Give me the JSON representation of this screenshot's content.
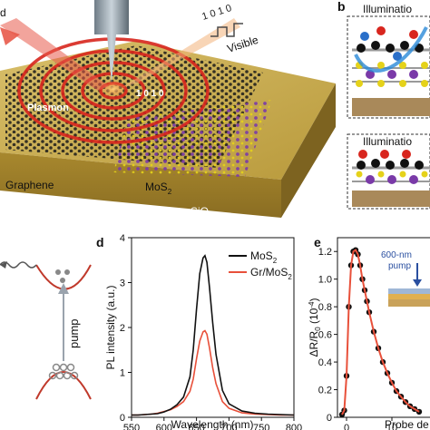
{
  "panels": {
    "a": {
      "labels": {
        "plasmon": "Plasmon",
        "graphene": "Graphene",
        "mos2": "MoS",
        "mos2_sub": "2",
        "sio2": "SiO",
        "sio2_sub": "2",
        "visible": "Visible",
        "left_clip": "d",
        "code_top": "1 0 1 0",
        "code_center": "1 0 1 0"
      }
    },
    "b": {
      "panel_letter": "b",
      "top_title": "Illuminatio",
      "bottom_title": "Illuminatio"
    },
    "c": {
      "pump_label": "pump"
    },
    "d": {
      "panel_letter": "d",
      "xlabel": "Wavelength (nm)",
      "ylabel": "PL intensity (a.u.)",
      "legend": [
        {
          "label": "MoS",
          "sub": "2",
          "color": "#111111"
        },
        {
          "label": "Gr/MoS",
          "sub": "2",
          "color": "#e8503a"
        }
      ]
    },
    "e": {
      "panel_letter": "e",
      "ylabel": "ΔR/R",
      "ylabel_sub": "0",
      "ylabel_unit": "(10",
      "ylabel_exp": "-4",
      "ylabel_close": ")",
      "xlabel": "Probe de",
      "pump_label_1": "600-nm",
      "pump_label_2": "pump"
    }
  },
  "chart_data": [
    {
      "type": "line",
      "panel": "d",
      "xlim": [
        550,
        800
      ],
      "ylim": [
        0,
        4
      ],
      "xticks": [
        550,
        600,
        650,
        700,
        750,
        800
      ],
      "yticks": [
        0,
        1,
        2,
        3,
        4
      ],
      "series": [
        {
          "name": "MoS2",
          "color": "#111111",
          "x": [
            550,
            560,
            570,
            580,
            590,
            600,
            610,
            620,
            630,
            640,
            645,
            650,
            655,
            660,
            663,
            666,
            670,
            675,
            680,
            690,
            700,
            720,
            740,
            760,
            780,
            800
          ],
          "y": [
            0.05,
            0.05,
            0.06,
            0.07,
            0.08,
            0.12,
            0.18,
            0.28,
            0.45,
            0.9,
            1.5,
            2.4,
            3.2,
            3.55,
            3.6,
            3.45,
            2.9,
            2.1,
            1.4,
            0.6,
            0.3,
            0.14,
            0.09,
            0.07,
            0.06,
            0.05
          ]
        },
        {
          "name": "Gr/MoS2",
          "color": "#e8503a",
          "x": [
            550,
            560,
            570,
            580,
            590,
            600,
            610,
            620,
            630,
            640,
            645,
            650,
            655,
            660,
            663,
            666,
            670,
            675,
            680,
            690,
            700,
            720,
            740,
            760,
            780,
            800
          ],
          "y": [
            0.05,
            0.05,
            0.06,
            0.07,
            0.09,
            0.13,
            0.17,
            0.24,
            0.35,
            0.58,
            0.85,
            1.3,
            1.7,
            1.9,
            1.93,
            1.85,
            1.55,
            1.1,
            0.75,
            0.35,
            0.2,
            0.1,
            0.07,
            0.06,
            0.05,
            0.05
          ]
        }
      ]
    },
    {
      "type": "scatter",
      "panel": "e",
      "ylim": [
        0,
        1.3
      ],
      "yticks": [
        0,
        0.2,
        0.4,
        0.6,
        0.8,
        1.0,
        1.2
      ],
      "xticks": [
        0,
        10
      ],
      "x": [
        -1,
        -0.5,
        0,
        0.5,
        1,
        1.5,
        2,
        2.5,
        3,
        3.5,
        4,
        4.5,
        5,
        6,
        7,
        8,
        9,
        10,
        11,
        12,
        13,
        14,
        15,
        16
      ],
      "y": [
        0.02,
        0.05,
        0.3,
        0.8,
        1.1,
        1.2,
        1.21,
        1.18,
        1.1,
        1.0,
        0.92,
        0.84,
        0.76,
        0.62,
        0.5,
        0.4,
        0.32,
        0.25,
        0.19,
        0.15,
        0.11,
        0.08,
        0.06,
        0.04
      ],
      "fit_color": "#e8503a"
    }
  ]
}
